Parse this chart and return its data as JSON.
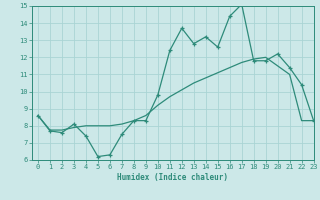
{
  "x_main": [
    0,
    1,
    2,
    3,
    4,
    5,
    6,
    7,
    8,
    9,
    10,
    11,
    12,
    13,
    14,
    15,
    16,
    17,
    18,
    19,
    20,
    21,
    22,
    23
  ],
  "y_main": [
    8.6,
    7.7,
    7.6,
    8.1,
    7.4,
    6.2,
    6.3,
    7.5,
    8.3,
    8.3,
    9.8,
    12.4,
    13.7,
    12.8,
    13.2,
    12.6,
    14.4,
    15.1,
    11.8,
    11.8,
    12.2,
    11.4,
    10.4,
    8.3
  ],
  "y_trend": [
    8.6,
    7.75,
    7.75,
    7.9,
    8.0,
    8.0,
    8.0,
    8.1,
    8.3,
    8.6,
    9.2,
    9.7,
    10.1,
    10.5,
    10.8,
    11.1,
    11.4,
    11.7,
    11.9,
    12.0,
    11.5,
    11.0,
    8.3,
    8.3
  ],
  "line_color": "#2e8b7a",
  "bg_color": "#cce8e8",
  "grid_color": "#aad4d4",
  "xlabel": "Humidex (Indice chaleur)",
  "ylim": [
    6,
    15
  ],
  "xlim": [
    -0.5,
    23
  ],
  "yticks": [
    6,
    7,
    8,
    9,
    10,
    11,
    12,
    13,
    14,
    15
  ],
  "xticks": [
    0,
    1,
    2,
    3,
    4,
    5,
    6,
    7,
    8,
    9,
    10,
    11,
    12,
    13,
    14,
    15,
    16,
    17,
    18,
    19,
    20,
    21,
    22,
    23
  ]
}
